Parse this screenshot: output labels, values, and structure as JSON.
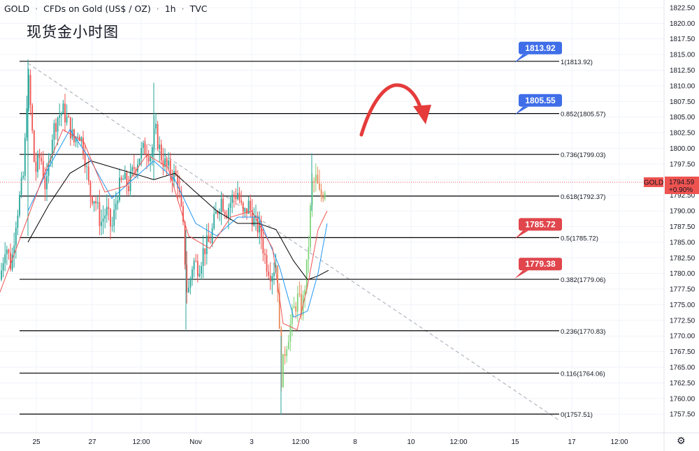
{
  "header": {
    "symbol": "GOLD",
    "description": "CFDs on Gold (US$ / OZ)",
    "interval": "1h",
    "source": "TVC"
  },
  "annotation_title": "现货金小时图",
  "colors": {
    "candle_up": "#26a69a",
    "candle_down": "#ef5350",
    "candle_up_light": "#7fd47a",
    "candle_down_light": "#e88a5a",
    "fib_line": "#000000",
    "ma_fast": "#ef5350",
    "ma_mid": "#2196f3",
    "ma_slow": "#000000",
    "trendline": "#b2b5be",
    "callout_blue": "#3f6ee8",
    "callout_red": "#e0464c",
    "arrow": "#e53b3b",
    "price_tag": "#ef5350"
  },
  "chart_data": {
    "type": "candlestick",
    "y_axis": {
      "range": [
        1755.4,
        1823.5
      ],
      "ticks": [
        "1822.50",
        "1820.00",
        "1817.50",
        "1815.00",
        "1812.50",
        "1810.00",
        "1807.50",
        "1805.00",
        "1802.50",
        "1800.00",
        "1797.50",
        "1795.00",
        "1792.50",
        "1790.00",
        "1787.50",
        "1785.00",
        "1782.50",
        "1780.00",
        "1777.50",
        "1775.00",
        "1772.50",
        "1770.00",
        "1767.50",
        "1765.00",
        "1762.50",
        "1760.00",
        "1757.50"
      ]
    },
    "x_axis": {
      "ticks": [
        "25",
        "27",
        "12:00",
        "Nov",
        "3",
        "12:00",
        "8",
        "10",
        "12:00",
        "15",
        "17",
        "12:00"
      ]
    },
    "last_price": {
      "symbol": "GOLD",
      "price": "1794.59",
      "change": "+0.90%",
      "value": 1794.59
    },
    "fibonacci": [
      {
        "label": "1(1813.92)",
        "value": 1813.92
      },
      {
        "label": "0.852(1805.57)",
        "value": 1805.57
      },
      {
        "label": "0.736(1799.03)",
        "value": 1799.03
      },
      {
        "label": "0.618(1792.37)",
        "value": 1792.37
      },
      {
        "label": "0.5(1785.72)",
        "value": 1785.72
      },
      {
        "label": "0.382(1779.06)",
        "value": 1779.06
      },
      {
        "label": "0.236(1770.83)",
        "value": 1770.83
      },
      {
        "label": "0.116(1764.06)",
        "value": 1764.06
      },
      {
        "label": "0(1757.51)",
        "value": 1757.51
      }
    ],
    "callouts": [
      {
        "text": "1813.92",
        "value": 1813.92,
        "style": "blue"
      },
      {
        "text": "1805.55",
        "value": 1805.55,
        "style": "blue"
      },
      {
        "text": "1785.72",
        "value": 1785.72,
        "style": "red"
      },
      {
        "text": "1779.38",
        "value": 1779.38,
        "style": "red"
      }
    ],
    "path": [
      [
        0,
        1779
      ],
      [
        8,
        1785
      ],
      [
        16,
        1781
      ],
      [
        22,
        1788
      ],
      [
        28,
        1792
      ],
      [
        34,
        1796
      ],
      [
        40,
        1812
      ],
      [
        44,
        1806
      ],
      [
        50,
        1796
      ],
      [
        58,
        1799
      ],
      [
        66,
        1793
      ],
      [
        74,
        1802
      ],
      [
        82,
        1805
      ],
      [
        90,
        1806
      ],
      [
        98,
        1804
      ],
      [
        106,
        1801
      ],
      [
        112,
        1803
      ],
      [
        120,
        1800
      ],
      [
        128,
        1793
      ],
      [
        136,
        1792
      ],
      [
        144,
        1788
      ],
      [
        152,
        1790
      ],
      [
        160,
        1787
      ],
      [
        168,
        1793
      ],
      [
        176,
        1795
      ],
      [
        184,
        1794
      ],
      [
        192,
        1797
      ],
      [
        200,
        1799
      ],
      [
        208,
        1800
      ],
      [
        216,
        1799
      ],
      [
        222,
        1803
      ],
      [
        230,
        1799
      ],
      [
        238,
        1797
      ],
      [
        246,
        1796
      ],
      [
        254,
        1795
      ],
      [
        262,
        1787
      ],
      [
        268,
        1776
      ],
      [
        276,
        1782
      ],
      [
        284,
        1781
      ],
      [
        292,
        1784
      ],
      [
        300,
        1785
      ],
      [
        308,
        1789
      ],
      [
        316,
        1792
      ],
      [
        324,
        1790
      ],
      [
        332,
        1792
      ],
      [
        340,
        1793
      ],
      [
        348,
        1789
      ],
      [
        356,
        1791
      ],
      [
        364,
        1788
      ],
      [
        372,
        1787
      ],
      [
        380,
        1782
      ],
      [
        388,
        1780
      ],
      [
        396,
        1782
      ],
      [
        402,
        1763
      ],
      [
        408,
        1768
      ],
      [
        414,
        1771
      ],
      [
        420,
        1774
      ],
      [
        426,
        1776
      ],
      [
        432,
        1774
      ],
      [
        440,
        1782
      ],
      [
        446,
        1794
      ],
      [
        452,
        1795
      ],
      [
        458,
        1792
      ],
      [
        466,
        1794
      ]
    ],
    "ma_fast": [
      [
        0,
        1777
      ],
      [
        30,
        1786
      ],
      [
        60,
        1795
      ],
      [
        90,
        1803
      ],
      [
        120,
        1801
      ],
      [
        150,
        1793
      ],
      [
        180,
        1794
      ],
      [
        210,
        1799
      ],
      [
        240,
        1797
      ],
      [
        270,
        1786
      ],
      [
        300,
        1784
      ],
      [
        330,
        1789
      ],
      [
        360,
        1790
      ],
      [
        390,
        1784
      ],
      [
        405,
        1772
      ],
      [
        425,
        1771
      ],
      [
        440,
        1778
      ],
      [
        455,
        1787
      ],
      [
        468,
        1790
      ]
    ],
    "ma_mid": [
      [
        40,
        1790
      ],
      [
        70,
        1797
      ],
      [
        100,
        1803
      ],
      [
        130,
        1798
      ],
      [
        160,
        1792
      ],
      [
        190,
        1795
      ],
      [
        220,
        1798
      ],
      [
        250,
        1795
      ],
      [
        280,
        1788
      ],
      [
        310,
        1786
      ],
      [
        340,
        1789
      ],
      [
        370,
        1789
      ],
      [
        400,
        1781
      ],
      [
        420,
        1773
      ],
      [
        440,
        1774
      ],
      [
        455,
        1780
      ],
      [
        468,
        1788
      ]
    ],
    "ma_slow": [
      [
        40,
        1785
      ],
      [
        70,
        1791
      ],
      [
        100,
        1796
      ],
      [
        130,
        1798
      ],
      [
        160,
        1797
      ],
      [
        190,
        1796
      ],
      [
        220,
        1795
      ],
      [
        250,
        1796
      ],
      [
        280,
        1793
      ],
      [
        310,
        1790
      ],
      [
        340,
        1788
      ],
      [
        370,
        1788
      ],
      [
        395,
        1787
      ],
      [
        420,
        1782
      ],
      [
        440,
        1779
      ],
      [
        455,
        1779.6
      ],
      [
        470,
        1780.5
      ]
    ]
  }
}
